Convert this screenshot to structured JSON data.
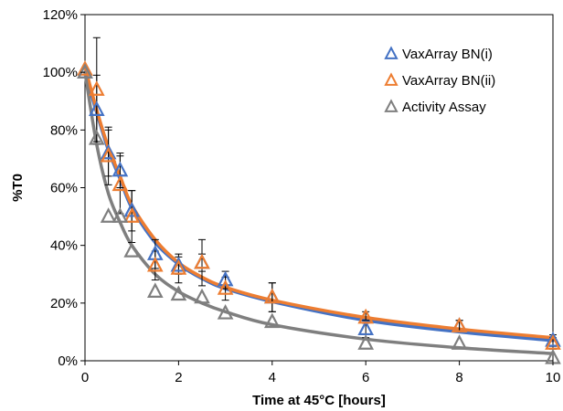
{
  "chart_data": {
    "type": "scatter",
    "title": "",
    "xlabel": "Time at 45°C [hours]",
    "ylabel": "%T0",
    "xlim": [
      0,
      10
    ],
    "ylim": [
      0,
      120
    ],
    "x_ticks": [
      0,
      2,
      4,
      6,
      8,
      10
    ],
    "x_tick_labels": [
      "0",
      "2",
      "4",
      "6",
      "8",
      "10"
    ],
    "y_ticks": [
      0,
      20,
      40,
      60,
      80,
      100,
      120
    ],
    "y_tick_labels": [
      "0%",
      "20%",
      "40%",
      "60%",
      "80%",
      "100%",
      "120%"
    ],
    "grid": false,
    "legend_position": "top-right",
    "series": [
      {
        "name": "VaxArray BN(i)",
        "color": "#4472C4",
        "marker": "open-triangle",
        "x": [
          0,
          0.25,
          0.5,
          0.75,
          1,
          1.5,
          2,
          2.5,
          3,
          4,
          6,
          8,
          10
        ],
        "y": [
          100,
          87,
          72,
          66,
          52,
          37,
          33,
          34,
          28,
          22,
          11,
          12,
          7
        ],
        "error": [
          0,
          12,
          8,
          6,
          7,
          5,
          3,
          3,
          3,
          5,
          3,
          2,
          2
        ],
        "fit_y": [
          100,
          86,
          73,
          63,
          53,
          41,
          33.5,
          28.5,
          25,
          20.5,
          14,
          10,
          7
        ]
      },
      {
        "name": "VaxArray BN(ii)",
        "color": "#ED7D31",
        "marker": "open-triangle",
        "x": [
          0,
          0.25,
          0.5,
          0.75,
          1,
          1.5,
          2,
          2.5,
          3,
          4,
          6,
          8,
          10
        ],
        "y": [
          101,
          94,
          71,
          61,
          50,
          33,
          32,
          34,
          25,
          22,
          15,
          12,
          6
        ],
        "error": [
          0,
          18,
          10,
          10,
          9,
          5,
          5,
          8,
          4,
          5,
          2,
          2,
          2
        ],
        "fit_y": [
          102,
          87,
          74,
          64,
          54,
          42,
          34,
          29,
          25.5,
          21,
          15,
          11,
          8
        ]
      },
      {
        "name": "Activity Assay",
        "color": "#7F7F7F",
        "marker": "open-triangle",
        "x": [
          0,
          0.25,
          0.5,
          0.75,
          1,
          1.5,
          2,
          2.5,
          3,
          4,
          6,
          8,
          10
        ],
        "y": [
          100,
          77,
          50,
          50,
          38,
          24,
          23,
          22,
          16.5,
          13.5,
          6,
          6,
          1
        ],
        "error": [
          0,
          0,
          0,
          0,
          0,
          0,
          0,
          0,
          0,
          0,
          0,
          0,
          0
        ],
        "fit_y": [
          100,
          75,
          58,
          48,
          40,
          30,
          24,
          20,
          17,
          12.5,
          7.5,
          4.5,
          2.5
        ]
      }
    ]
  }
}
